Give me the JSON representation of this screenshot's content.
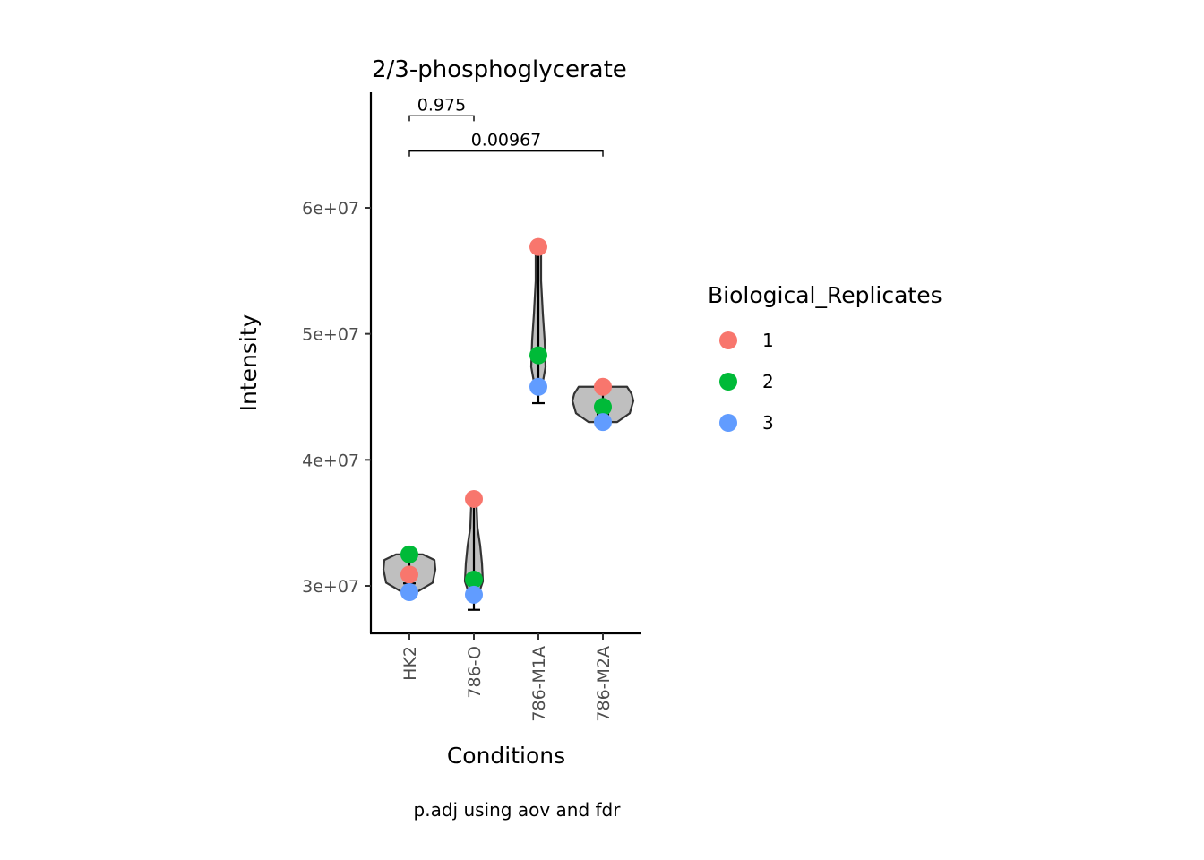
{
  "chart_data": {
    "type": "violin",
    "title": "2/3-phosphoglycerate",
    "xlabel": "Conditions",
    "ylabel": "Intensity",
    "caption": "p.adj using  aov and fdr",
    "categories": [
      "HK2",
      "786-O",
      "786-M1A",
      "786-M2A"
    ],
    "ylim": [
      26200000,
      69000000
    ],
    "yticks": [
      30000000,
      40000000,
      50000000,
      60000000
    ],
    "ytick_labels": [
      "3e+07",
      "4e+07",
      "5e+07",
      "6e+07"
    ],
    "violin_fill": "#bfbfbf",
    "violin_stroke": "#333333",
    "errorbars": [
      {
        "category": "HK2",
        "low": 30200000,
        "high": 32100000
      },
      {
        "category": "786-O",
        "low": 28100000,
        "high": 36500000
      },
      {
        "category": "786-M1A",
        "low": 44500000,
        "high": 56200000
      },
      {
        "category": "786-M2A",
        "low": 43600000,
        "high": 45200000
      }
    ],
    "points": [
      {
        "category": "HK2",
        "replicate": "1",
        "value": 30900000
      },
      {
        "category": "HK2",
        "replicate": "2",
        "value": 32500000
      },
      {
        "category": "HK2",
        "replicate": "3",
        "value": 29500000
      },
      {
        "category": "786-O",
        "replicate": "1",
        "value": 36900000
      },
      {
        "category": "786-O",
        "replicate": "2",
        "value": 30500000
      },
      {
        "category": "786-O",
        "replicate": "3",
        "value": 29300000
      },
      {
        "category": "786-M1A",
        "replicate": "1",
        "value": 56900000
      },
      {
        "category": "786-M1A",
        "replicate": "2",
        "value": 48300000
      },
      {
        "category": "786-M1A",
        "replicate": "3",
        "value": 45800000
      },
      {
        "category": "786-M2A",
        "replicate": "1",
        "value": 45800000
      },
      {
        "category": "786-M2A",
        "replicate": "2",
        "value": 44200000
      },
      {
        "category": "786-M2A",
        "replicate": "3",
        "value": 43000000
      }
    ],
    "comparisons": [
      {
        "from": "HK2",
        "to": "786-O",
        "label": "0.975",
        "y": 67300000
      },
      {
        "from": "HK2",
        "to": "786-M2A",
        "label": "0.00967",
        "y": 64500000
      }
    ],
    "legend": {
      "title": "Biological_Replicates",
      "position": "right",
      "items": [
        {
          "label": "1",
          "color": "#F8766D"
        },
        {
          "label": "2",
          "color": "#00BA38"
        },
        {
          "label": "3",
          "color": "#619CFF"
        }
      ]
    }
  }
}
